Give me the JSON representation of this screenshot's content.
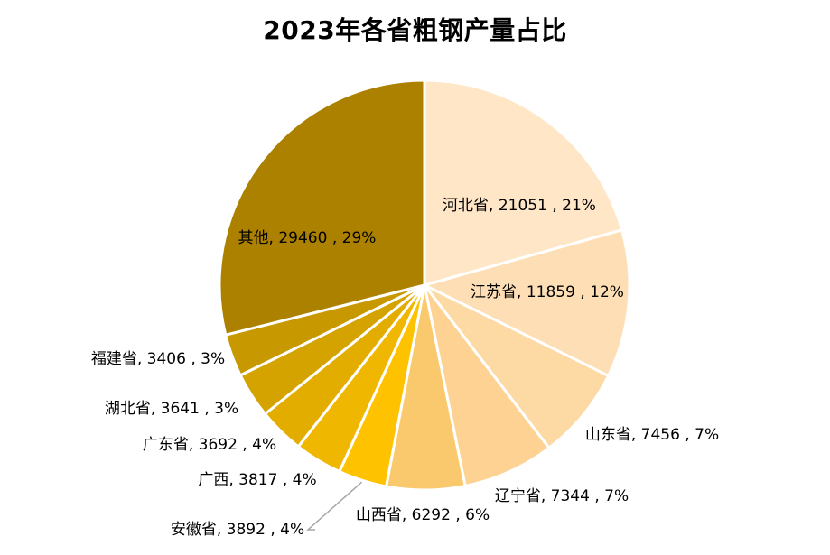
{
  "chart_data": {
    "type": "pie",
    "title": "2023年各省粗钢产量占比",
    "legend": "none",
    "start_angle_deg": 0,
    "direction": "clockwise",
    "slices": [
      {
        "name": "河北省",
        "value": 21051,
        "percent": "21%",
        "label": "河北省, 21051 , 21%",
        "color": "#FEE6C6"
      },
      {
        "name": "江苏省",
        "value": 11859,
        "percent": "12%",
        "label": "江苏省, 11859 , 12%",
        "color": "#FEDFB5"
      },
      {
        "name": "山东省",
        "value": 7456,
        "percent": "7%",
        "label": "山东省, 7456 , 7%",
        "color": "#FDD9A4"
      },
      {
        "name": "辽宁省",
        "value": 7344,
        "percent": "7%",
        "label": "辽宁省, 7344 , 7%",
        "color": "#FDD293"
      },
      {
        "name": "山西省",
        "value": 6292,
        "percent": "6%",
        "label": "山西省, 6292 , 6%",
        "color": "#FBC96D"
      },
      {
        "name": "安徽省",
        "value": 3892,
        "percent": "4%",
        "label": "安徽省, 3892 , 4%",
        "color": "#FEC200"
      },
      {
        "name": "广西",
        "value": 3817,
        "percent": "4%",
        "label": "广西, 3817 , 4%",
        "color": "#F0B700"
      },
      {
        "name": "广东省",
        "value": 3692,
        "percent": "4%",
        "label": "广东省, 3692 , 4%",
        "color": "#E3AD00"
      },
      {
        "name": "湖北省",
        "value": 3641,
        "percent": "3%",
        "label": "湖北省, 3641 , 3%",
        "color": "#D5A300"
      },
      {
        "name": "福建省",
        "value": 3406,
        "percent": "3%",
        "label": "福建省, 3406 , 3%",
        "color": "#C79800"
      },
      {
        "name": "其他",
        "value": 29460,
        "percent": "29%",
        "label": "其他, 29460 , 29%",
        "color": "#AD8100"
      }
    ]
  }
}
